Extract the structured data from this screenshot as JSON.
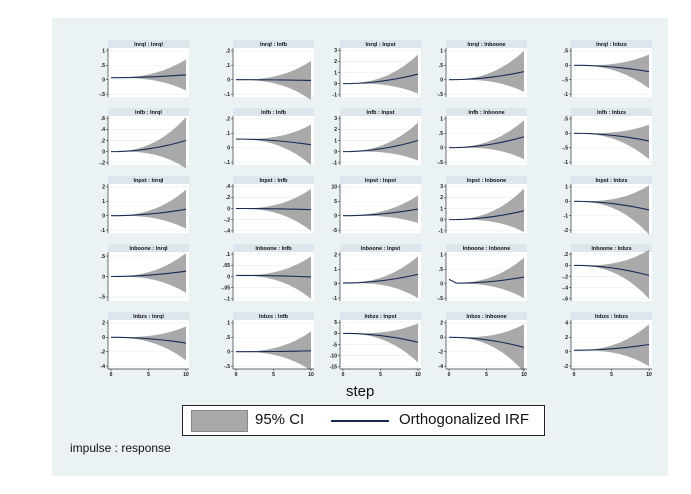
{
  "chart_data": {
    "type": "line",
    "xlabel": "step",
    "x_ticks": [
      0,
      5,
      10
    ],
    "xlim": [
      0,
      10
    ],
    "note": "impulse : response",
    "legend": {
      "placement": "bottom",
      "items": [
        "95% CI",
        "Orthogonalized IRF"
      ]
    },
    "colors": {
      "ci": "#a9a9a9",
      "irf": "#1a2a55",
      "strip": "#dce6ec",
      "background": "#eaf2f3"
    },
    "panels": [
      {
        "title": "lnrql : lnrql",
        "yticks": [
          -0.5,
          0,
          0.5,
          1
        ],
        "irf_start": 0.07,
        "irf_end": 0.17,
        "ci_end": [
          -0.37,
          0.7
        ]
      },
      {
        "title": "lnrql : lnfb",
        "yticks": [
          -0.1,
          0,
          0.1,
          0.2
        ],
        "irf_start": 0,
        "irf_end": -0.005,
        "ci_end": [
          -0.14,
          0.13
        ]
      },
      {
        "title": "lnrql : lnpst",
        "yticks": [
          -1,
          0,
          1,
          2,
          3
        ],
        "irf_start": 0,
        "irf_end": 0.85,
        "ci_end": [
          -0.9,
          2.6
        ]
      },
      {
        "title": "lnrql : lnboone",
        "yticks": [
          -0.5,
          0,
          0.5,
          1
        ],
        "irf_start": 0,
        "irf_end": 0.28,
        "ci_end": [
          -0.42,
          1
        ]
      },
      {
        "title": "lnrql : lnbzs",
        "yticks": [
          -1,
          -0.5,
          0,
          0.5
        ],
        "irf_start": 0,
        "irf_end": -0.22,
        "ci_end": [
          -0.8,
          0.37
        ]
      },
      {
        "title": "lnfb : lnrql",
        "yticks": [
          -0.2,
          0,
          0.2,
          0.4,
          0.6
        ],
        "irf_start": 0,
        "irf_end": 0.2,
        "ci_end": [
          -0.3,
          0.62
        ]
      },
      {
        "title": "lnfb : lnfb",
        "yticks": [
          -0.1,
          0,
          0.1,
          0.2
        ],
        "irf_start": 0.06,
        "irf_end": 0.02,
        "ci_end": [
          -0.12,
          0.16
        ]
      },
      {
        "title": "lnfb : lnpst",
        "yticks": [
          -1,
          0,
          1,
          2,
          3
        ],
        "irf_start": 0,
        "irf_end": 1.0,
        "ci_end": [
          -0.8,
          2.6
        ]
      },
      {
        "title": "lnfb : lnboone",
        "yticks": [
          -0.5,
          0,
          0.5,
          1
        ],
        "irf_start": 0,
        "irf_end": 0.38,
        "ci_end": [
          -0.4,
          0.95
        ]
      },
      {
        "title": "lnfb : lnbzs",
        "yticks": [
          -1,
          -0.5,
          0,
          0.5
        ],
        "irf_start": 0,
        "irf_end": -0.27,
        "ci_end": [
          -0.9,
          0.3
        ]
      },
      {
        "title": "lnpst : lnrql",
        "yticks": [
          -1,
          0,
          1,
          2
        ],
        "irf_start": 0,
        "irf_end": 0.45,
        "ci_end": [
          -0.9,
          1.8
        ]
      },
      {
        "title": "lnpst : lnfb",
        "yticks": [
          -0.4,
          -0.2,
          0,
          0.2,
          0.4
        ],
        "irf_start": 0,
        "irf_end": -0.02,
        "ci_end": [
          -0.4,
          0.35
        ]
      },
      {
        "title": "lnpst : lnpst",
        "yticks": [
          -5,
          0,
          5,
          10
        ],
        "irf_start": 0,
        "irf_end": 2.3,
        "ci_end": [
          -2.5,
          7
        ]
      },
      {
        "title": "lnpst : lnboone",
        "yticks": [
          -1,
          0,
          1,
          2,
          3
        ],
        "irf_start": 0,
        "irf_end": 0.8,
        "ci_end": [
          -1.1,
          2.8
        ]
      },
      {
        "title": "lnpst : lnbzs",
        "yticks": [
          -2,
          -1,
          0,
          1
        ],
        "irf_start": 0,
        "irf_end": -0.6,
        "ci_end": [
          -2.3,
          1.1
        ]
      },
      {
        "title": "lnboone : lnrql",
        "yticks": [
          -0.5,
          0,
          0.5
        ],
        "irf_start": 0,
        "irf_end": 0.13,
        "ci_end": [
          -0.4,
          0.57
        ]
      },
      {
        "title": "lnboone : lnfb",
        "yticks": [
          -0.1,
          -0.05,
          0,
          0.05,
          0.1
        ],
        "irf_start": 0.005,
        "irf_end": -0.002,
        "ci_end": [
          -0.1,
          0.09
        ]
      },
      {
        "title": "lnboone : lnpst",
        "yticks": [
          -1,
          0,
          1,
          2
        ],
        "irf_start": 0.05,
        "irf_end": 0.65,
        "ci_end": [
          -1,
          1.9
        ]
      },
      {
        "title": "lnboone : lnboone",
        "yticks": [
          -0.5,
          0,
          0.5,
          1
        ],
        "irf_start": 0.15,
        "irf_step1": 0.02,
        "irf_end": 0.23,
        "ci_end": [
          -0.5,
          0.9
        ]
      },
      {
        "title": "lnboone : lnbzs",
        "yticks": [
          -0.6,
          -0.4,
          -0.2,
          0,
          0.2
        ],
        "irf_start": 0,
        "irf_end": -0.18,
        "ci_end": [
          -0.6,
          0.28
        ]
      },
      {
        "title": "lnbzs : lnrql",
        "yticks": [
          -4,
          -2,
          0,
          2
        ],
        "irf_start": 0,
        "irf_end": -0.8,
        "ci_end": [
          -3.2,
          1.5
        ]
      },
      {
        "title": "lnbzs : lnfb",
        "yticks": [
          -0.5,
          0,
          0.5,
          1
        ],
        "irf_start": 0,
        "irf_end": 0.03,
        "ci_end": [
          -0.65,
          0.7
        ]
      },
      {
        "title": "lnbzs : lnpst",
        "yticks": [
          -15,
          -10,
          -5,
          0,
          5
        ],
        "irf_start": 0,
        "irf_end": -4,
        "ci_end": [
          -13,
          4.5
        ]
      },
      {
        "title": "lnbzs : lnboone",
        "yticks": [
          -4,
          -2,
          0,
          2
        ],
        "irf_start": 0,
        "irf_end": -1.4,
        "ci_end": [
          -4.8,
          1.8
        ]
      },
      {
        "title": "lnbzs : lnbzs",
        "yticks": [
          -2,
          0,
          2,
          4
        ],
        "irf_start": 0.2,
        "irf_end": 1.0,
        "ci_end": [
          -2,
          3.8
        ]
      }
    ]
  }
}
